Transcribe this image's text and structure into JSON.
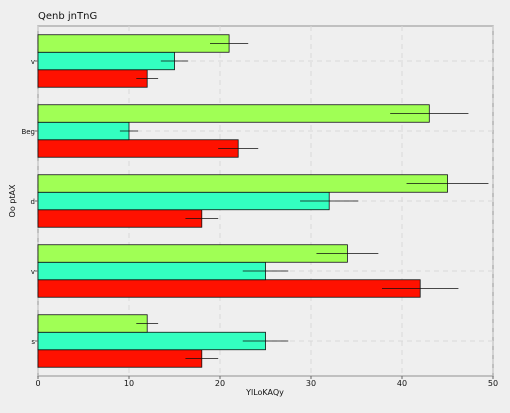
{
  "chart_data": {
    "type": "bar",
    "orientation": "horizontal",
    "title": "Qenb jnTnG",
    "xlabel": "YlLoKAQy",
    "ylabel": "Oo ptAX",
    "xlim": [
      0,
      50
    ],
    "xticks": [
      0,
      10,
      20,
      30,
      40,
      50
    ],
    "grid": true,
    "categories": [
      "s",
      "v",
      "d",
      "Beg",
      "v"
    ],
    "series": [
      {
        "color": "#ff1100",
        "values": [
          18,
          42,
          18,
          22,
          12
        ],
        "errors": [
          1.8,
          4.2,
          1.8,
          2.2,
          1.2
        ]
      },
      {
        "color": "#33ffc0",
        "values": [
          25,
          25,
          32,
          10,
          15
        ],
        "errors": [
          2.5,
          2.5,
          3.2,
          1.0,
          1.5
        ]
      },
      {
        "color": "#a0ff55",
        "values": [
          12,
          34,
          45,
          43,
          21
        ],
        "errors": [
          1.2,
          3.4,
          4.5,
          4.3,
          2.1
        ]
      }
    ]
  }
}
